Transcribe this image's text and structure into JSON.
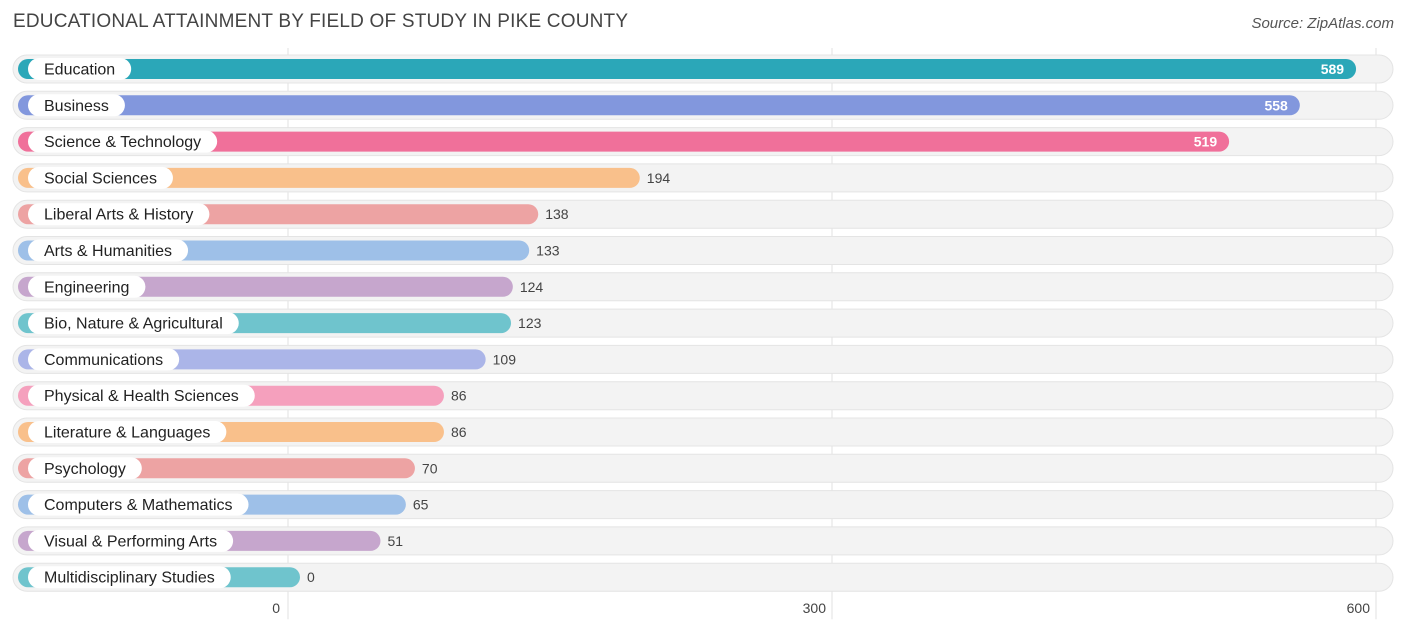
{
  "header": {
    "title": "EDUCATIONAL ATTAINMENT BY FIELD OF STUDY IN PIKE COUNTY",
    "source": "Source: ZipAtlas.com"
  },
  "chart_data": {
    "type": "bar",
    "orientation": "horizontal",
    "title": "EDUCATIONAL ATTAINMENT BY FIELD OF STUDY IN PIKE COUNTY",
    "xlim": [
      0,
      600
    ],
    "xticks": [
      0,
      300,
      600
    ],
    "grid": true,
    "categories": [
      "Education",
      "Business",
      "Science & Technology",
      "Social Sciences",
      "Liberal Arts & History",
      "Arts & Humanities",
      "Engineering",
      "Bio, Nature & Agricultural",
      "Communications",
      "Physical & Health Sciences",
      "Literature & Languages",
      "Psychology",
      "Computers & Mathematics",
      "Visual & Performing Arts",
      "Multidisciplinary Studies"
    ],
    "values": [
      589,
      558,
      519,
      194,
      138,
      133,
      124,
      123,
      109,
      86,
      86,
      70,
      65,
      51,
      0
    ],
    "colors": [
      "#2ba7b8",
      "#8297dd",
      "#f0709a",
      "#f9c08b",
      "#eda3a3",
      "#9ec0e8",
      "#c6a6cd",
      "#6fc4cd",
      "#abb5e8",
      "#f5a0bd",
      "#f9c08b",
      "#eda3a3",
      "#9ec0e8",
      "#c6a6cd",
      "#6fc4cd"
    ]
  }
}
